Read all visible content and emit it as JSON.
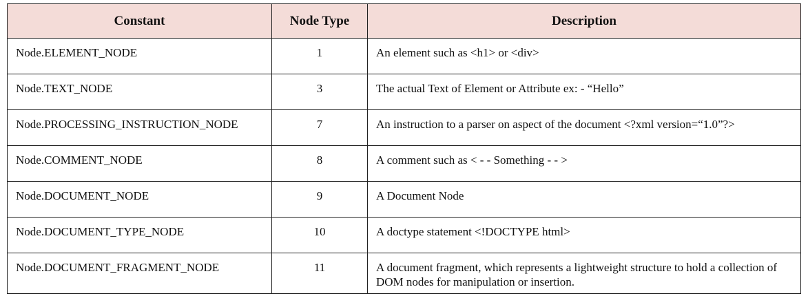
{
  "table": {
    "headers": [
      "Constant",
      "Node Type",
      "Description"
    ],
    "rows": [
      {
        "constant": "Node.ELEMENT_NODE",
        "type": "1",
        "description": "An element such as <h1> or <div>"
      },
      {
        "constant": "Node.TEXT_NODE",
        "type": "3",
        "description": "The actual Text of Element or Attribute ex: - “Hello”"
      },
      {
        "constant": "Node.PROCESSING_INSTRUCTION_NODE",
        "type": "7",
        "description": "An instruction to a parser on aspect of the document <?xml version=“1.0”?>"
      },
      {
        "constant": "Node.COMMENT_NODE",
        "type": "8",
        "description": "A comment such as < - - Something - - >"
      },
      {
        "constant": "Node.DOCUMENT_NODE",
        "type": "9",
        "description": "A Document Node"
      },
      {
        "constant": "Node.DOCUMENT_TYPE_NODE",
        "type": "10",
        "description": "A doctype statement <!DOCTYPE html>"
      },
      {
        "constant": "Node.DOCUMENT_FRAGMENT_NODE",
        "type": "11",
        "description": "A document fragment, which represents a lightweight structure to hold a collection of DOM nodes for manipulation or insertion."
      }
    ]
  },
  "colors": {
    "header_background": "#f4dcd8",
    "border": "#222222",
    "text": "#111111"
  }
}
